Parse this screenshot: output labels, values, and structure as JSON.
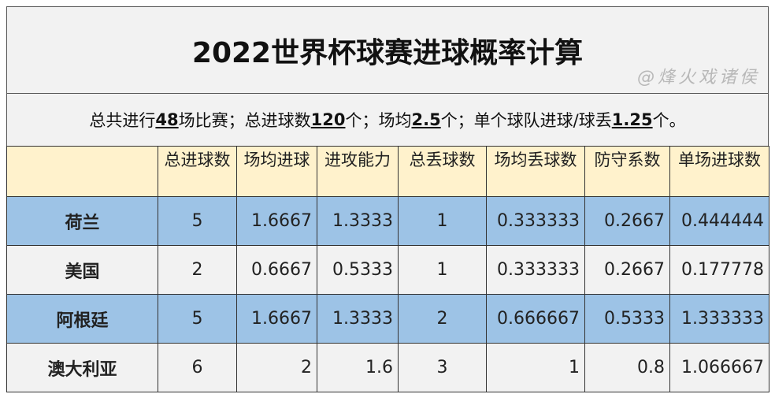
{
  "title": "2022世界杯球赛进球概率计算",
  "summary": {
    "p1": "总共进行",
    "v1": "48",
    "p2": "场比赛；总进球数",
    "v2": "120",
    "p3": "个；场均",
    "v3": "2.5",
    "p4": "个；单个球队进球/球丢",
    "v4": "1.25",
    "p5": "个。"
  },
  "headers": [
    "",
    "总进球数",
    "场均进球",
    "进攻能力",
    "总丢球数",
    "场均丢球数",
    "防守系数",
    "单场进球数"
  ],
  "rows": [
    {
      "style": "blue",
      "cells": [
        "荷兰",
        "5",
        "1.6667",
        "1.3333",
        "1",
        "0.333333",
        "0.2667",
        "0.444444"
      ]
    },
    {
      "style": "gray",
      "cells": [
        "美国",
        "2",
        "0.6667",
        "0.5333",
        "1",
        "0.333333",
        "0.2667",
        "0.177778"
      ]
    },
    {
      "style": "blue",
      "cells": [
        "阿根廷",
        "5",
        "1.6667",
        "1.3333",
        "2",
        "0.666667",
        "0.5333",
        "1.333333"
      ]
    },
    {
      "style": "gray",
      "cells": [
        "澳大利亚",
        "6",
        "2",
        "1.6",
        "3",
        "1",
        "0.8",
        "1.066667"
      ]
    }
  ],
  "watermark": "@烽火戏诸侯",
  "colors": {
    "header": "#fff2cc",
    "blue_row": "#9dc3e6",
    "gray_row": "#f2f2f2"
  }
}
